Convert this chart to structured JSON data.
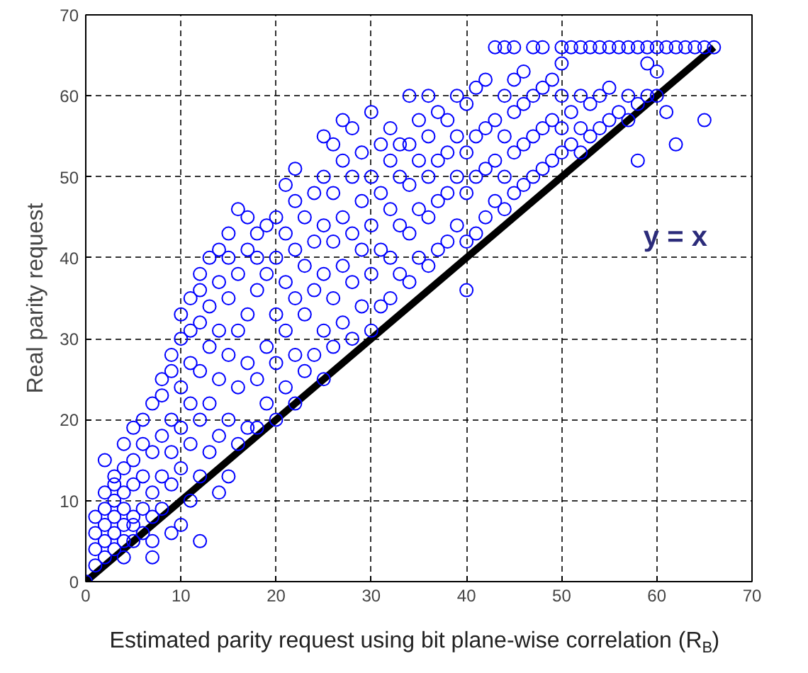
{
  "chart_data": {
    "type": "scatter",
    "xlabel": "Estimated parity request using bit plane-wise correlation (R$_{B}$)",
    "ylabel": "Real parity request",
    "xlim": [
      0,
      70
    ],
    "ylim": [
      0,
      70
    ],
    "xticks": [
      0,
      10,
      20,
      30,
      40,
      50,
      60,
      70
    ],
    "yticks": [
      0,
      10,
      20,
      30,
      40,
      50,
      60,
      70
    ],
    "grid": true,
    "marker": "circle",
    "annotations": [
      "y = x"
    ],
    "series": [
      {
        "color": "#0000ff",
        "x": [
          0,
          1,
          1,
          1,
          1,
          2,
          2,
          2,
          2,
          2,
          2,
          3,
          3,
          3,
          3,
          3,
          3,
          4,
          4,
          4,
          4,
          4,
          4,
          4,
          5,
          5,
          5,
          5,
          5,
          5,
          6,
          6,
          6,
          6,
          6,
          7,
          7,
          7,
          7,
          7,
          7,
          8,
          8,
          8,
          8,
          8,
          9,
          9,
          9,
          9,
          9,
          9,
          10,
          10,
          10,
          10,
          10,
          10,
          11,
          11,
          11,
          11,
          11,
          11,
          12,
          12,
          12,
          12,
          12,
          12,
          12,
          13,
          13,
          13,
          13,
          13,
          14,
          14,
          14,
          14,
          14,
          14,
          15,
          15,
          15,
          15,
          15,
          15,
          16,
          16,
          16,
          16,
          16,
          17,
          17,
          17,
          17,
          17,
          18,
          18,
          18,
          18,
          18,
          19,
          19,
          19,
          19,
          20,
          20,
          20,
          20,
          20,
          21,
          21,
          21,
          21,
          21,
          22,
          22,
          22,
          22,
          22,
          22,
          23,
          23,
          23,
          23,
          24,
          24,
          24,
          24,
          25,
          25,
          25,
          25,
          25,
          25,
          26,
          26,
          26,
          26,
          26,
          27,
          27,
          27,
          27,
          27,
          28,
          28,
          28,
          28,
          28,
          29,
          29,
          29,
          29,
          30,
          30,
          30,
          30,
          30,
          31,
          31,
          31,
          31,
          32,
          32,
          32,
          32,
          32,
          33,
          33,
          33,
          33,
          34,
          34,
          34,
          34,
          34,
          35,
          35,
          35,
          35,
          36,
          36,
          36,
          36,
          36,
          37,
          37,
          37,
          37,
          38,
          38,
          38,
          38,
          39,
          39,
          39,
          39,
          40,
          40,
          40,
          40,
          40,
          41,
          41,
          41,
          41,
          42,
          42,
          42,
          42,
          43,
          43,
          43,
          43,
          44,
          44,
          44,
          44,
          44,
          45,
          45,
          45,
          45,
          45,
          46,
          46,
          46,
          46,
          47,
          47,
          47,
          47,
          48,
          48,
          48,
          48,
          49,
          49,
          49,
          50,
          50,
          50,
          50,
          50,
          51,
          51,
          51,
          52,
          52,
          52,
          52,
          53,
          53,
          53,
          54,
          54,
          54,
          55,
          55,
          55,
          56,
          56,
          57,
          57,
          57,
          58,
          58,
          58,
          59,
          59,
          59,
          60,
          60,
          60,
          61,
          61,
          62,
          62,
          63,
          64,
          65,
          65,
          66
        ],
        "values": [
          0,
          2,
          4,
          6,
          8,
          3,
          5,
          7,
          9,
          11,
          15,
          4,
          6,
          8,
          10,
          12,
          13,
          3,
          5,
          7,
          9,
          11,
          14,
          17,
          5,
          7,
          8,
          12,
          15,
          19,
          6,
          9,
          13,
          17,
          20,
          3,
          5,
          8,
          11,
          16,
          22,
          9,
          13,
          18,
          23,
          25,
          6,
          12,
          16,
          20,
          26,
          28,
          7,
          14,
          19,
          24,
          30,
          33,
          10,
          17,
          22,
          27,
          31,
          35,
          5,
          13,
          20,
          26,
          32,
          36,
          38,
          16,
          22,
          29,
          34,
          40,
          11,
          18,
          25,
          31,
          37,
          41,
          13,
          20,
          28,
          35,
          40,
          43,
          17,
          24,
          31,
          38,
          46,
          19,
          27,
          33,
          41,
          45,
          19,
          25,
          36,
          40,
          43,
          22,
          29,
          38,
          44,
          20,
          27,
          33,
          40,
          45,
          24,
          31,
          37,
          43,
          49,
          22,
          28,
          35,
          41,
          47,
          51,
          26,
          33,
          39,
          45,
          28,
          36,
          42,
          48,
          25,
          31,
          38,
          44,
          50,
          55,
          29,
          35,
          42,
          48,
          54,
          32,
          39,
          45,
          52,
          57,
          30,
          37,
          43,
          50,
          56,
          34,
          41,
          47,
          53,
          31,
          38,
          44,
          50,
          58,
          34,
          41,
          48,
          54,
          35,
          40,
          46,
          52,
          56,
          38,
          44,
          50,
          54,
          37,
          43,
          49,
          54,
          60,
          40,
          46,
          52,
          57,
          39,
          45,
          50,
          55,
          60,
          41,
          47,
          52,
          58,
          42,
          48,
          53,
          57,
          44,
          50,
          55,
          60,
          36,
          42,
          48,
          53,
          59,
          43,
          50,
          55,
          61,
          45,
          51,
          56,
          62,
          47,
          52,
          57,
          66,
          46,
          50,
          55,
          60,
          66,
          48,
          53,
          58,
          62,
          66,
          49,
          54,
          59,
          63,
          50,
          55,
          60,
          66,
          51,
          56,
          61,
          66,
          52,
          57,
          62,
          53,
          56,
          60,
          64,
          66,
          54,
          58,
          66,
          53,
          56,
          60,
          66,
          55,
          59,
          66,
          56,
          60,
          66,
          57,
          61,
          66,
          58,
          66,
          57,
          60,
          66,
          52,
          59,
          66,
          60,
          64,
          66,
          60,
          63,
          66,
          58,
          66,
          54,
          66,
          66,
          66,
          57,
          66,
          66
        ]
      },
      {
        "type": "line",
        "color": "#000000",
        "line_style": "solid",
        "marker": "none",
        "x": [
          0,
          66
        ],
        "values": [
          0,
          66
        ]
      }
    ]
  }
}
